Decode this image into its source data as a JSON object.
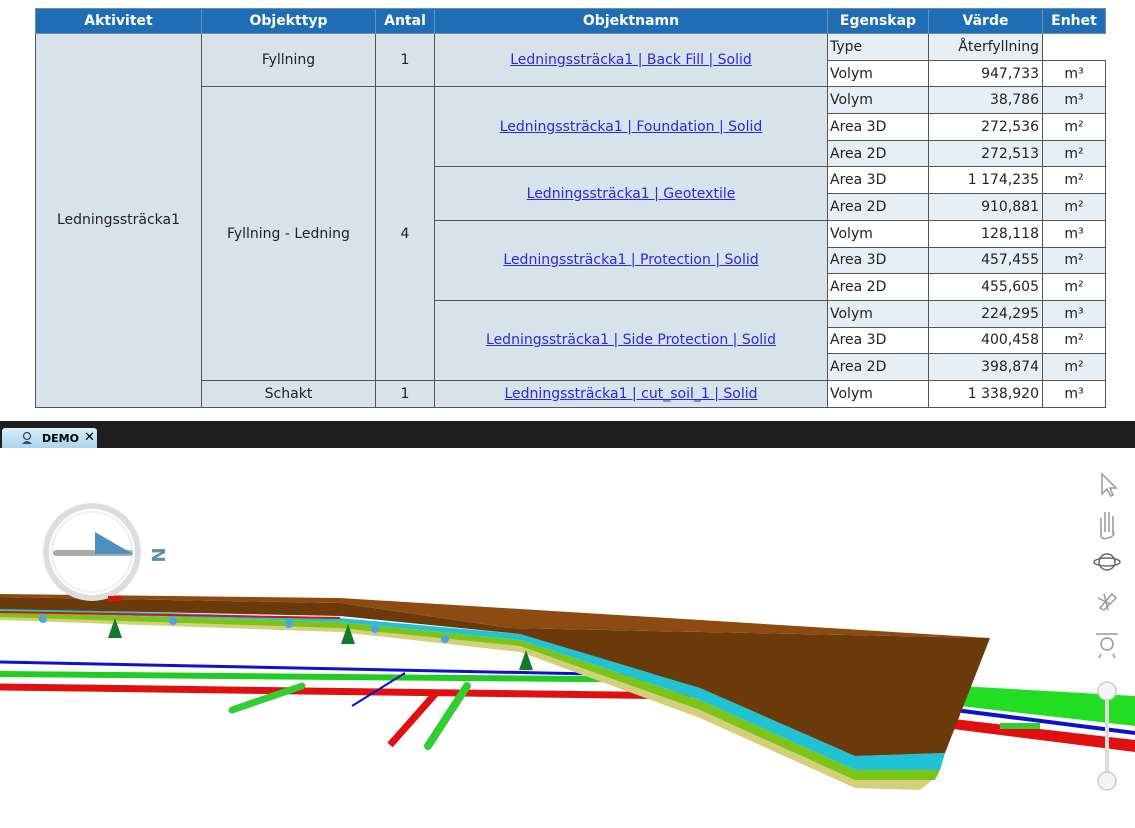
{
  "table": {
    "headers": [
      "Aktivitet",
      "Objekttyp",
      "Antal",
      "Objektnamn",
      "Egenskap",
      "Värde",
      "Enhet"
    ],
    "activity": "Ledningssträcka1",
    "types": [
      {
        "name": "Fyllning",
        "count": "1",
        "objects": [
          {
            "name": "Ledningssträcka1 | Back Fill | Solid",
            "properties": [
              {
                "property": "Type",
                "value": "Återfyllning"
              },
              {
                "property": "Volym",
                "value": "947,733",
                "unit": "m³"
              }
            ]
          }
        ]
      },
      {
        "name": "Fyllning - Ledning",
        "count": "4",
        "objects": [
          {
            "name": "Ledningssträcka1 | Foundation | Solid",
            "properties": [
              {
                "property": "Volym",
                "value": "38,786",
                "unit": "m³"
              },
              {
                "property": "Area 3D",
                "value": "272,536",
                "unit": "m²"
              },
              {
                "property": "Area 2D",
                "value": "272,513",
                "unit": "m²"
              }
            ]
          },
          {
            "name": "Ledningssträcka1 | Geotextile",
            "properties": [
              {
                "property": "Area 3D",
                "value": "1 174,235",
                "unit": "m²"
              },
              {
                "property": "Area 2D",
                "value": "910,881",
                "unit": "m²"
              }
            ]
          },
          {
            "name": "Ledningssträcka1 | Protection | Solid",
            "properties": [
              {
                "property": "Volym",
                "value": "128,118",
                "unit": "m³"
              },
              {
                "property": "Area 3D",
                "value": "457,455",
                "unit": "m²"
              },
              {
                "property": "Area 2D",
                "value": "455,605",
                "unit": "m²"
              }
            ]
          },
          {
            "name": "Ledningssträcka1 | Side Protection | Solid",
            "properties": [
              {
                "property": "Volym",
                "value": "224,295",
                "unit": "m³"
              },
              {
                "property": "Area 3D",
                "value": "400,458",
                "unit": "m²"
              },
              {
                "property": "Area 2D",
                "value": "398,874",
                "unit": "m²"
              }
            ]
          }
        ]
      },
      {
        "name": "Schakt",
        "count": "1",
        "objects": [
          {
            "name": "Ledningssträcka1 | cut_soil_1 | Solid",
            "properties": [
              {
                "property": "Volym",
                "value": "1 338,920",
                "unit": "m³"
              }
            ]
          }
        ]
      }
    ]
  },
  "viewport": {
    "tab": "DEMO",
    "compass_label": "N"
  }
}
